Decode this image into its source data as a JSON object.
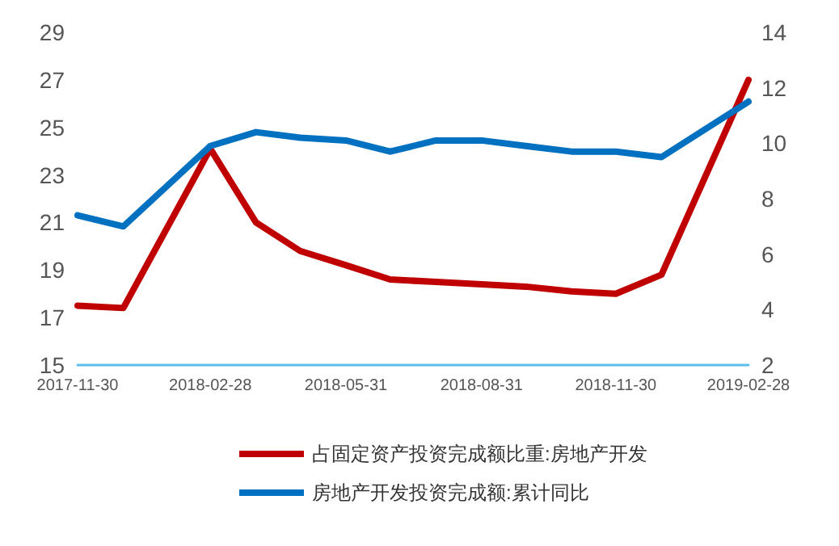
{
  "chart_data": {
    "type": "line",
    "x": [
      "2017-11-30",
      "2017-12-31",
      "2018-02-28",
      "2018-03-31",
      "2018-04-30",
      "2018-05-31",
      "2018-06-30",
      "2018-07-31",
      "2018-08-31",
      "2018-09-30",
      "2018-10-31",
      "2018-11-30",
      "2018-12-31",
      "2019-02-28"
    ],
    "series": [
      {
        "name": "占固定资产投资完成额比重:房地产开发",
        "color": "#c00000",
        "values": [
          17.5,
          17.4,
          24.1,
          21.0,
          19.8,
          19.2,
          18.6,
          18.5,
          18.4,
          18.3,
          18.1,
          18.0,
          18.8,
          27.0
        ]
      },
      {
        "name": "房地产开发投资完成额:累计同比",
        "color": "#0070c0",
        "axis": "y2",
        "values": [
          7.4,
          7.0,
          9.9,
          10.4,
          10.2,
          10.1,
          9.7,
          10.1,
          10.1,
          9.9,
          9.7,
          9.7,
          9.5,
          11.5
        ]
      }
    ],
    "xlim": [
      "2017-11-30",
      "2019-02-28"
    ],
    "xticks": [
      "2017-11-30",
      "2018-02-28",
      "2018-05-31",
      "2018-08-31",
      "2018-11-30",
      "2019-02-28"
    ],
    "ylim": [
      15,
      29
    ],
    "yticks": [
      15,
      17,
      19,
      21,
      23,
      25,
      27,
      29
    ],
    "y2lim": [
      2,
      14
    ],
    "y2ticks": [
      2,
      4,
      6,
      8,
      10,
      12,
      14
    ],
    "grid": false,
    "legend": "bottom",
    "marker": "none",
    "line_style": "solid"
  }
}
